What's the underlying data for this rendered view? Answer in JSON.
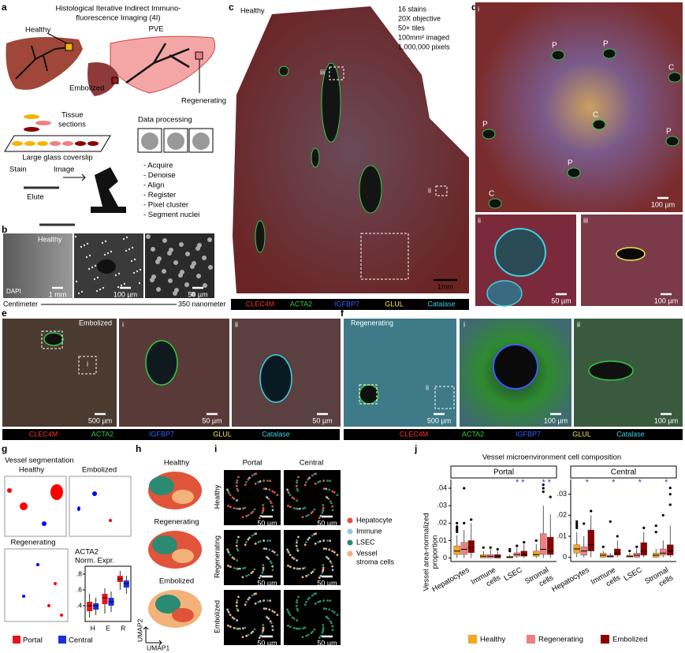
{
  "a": {
    "letter": "a",
    "title": [
      "Histological Iterative Indirect Immuno-",
      "fluorescence Imaging (4I)"
    ],
    "healthy": "Healthy",
    "pve": "PVE",
    "embolized": "Embolized",
    "regenerating": "Regenerating",
    "tissue_sections": [
      "Tissue",
      "sections"
    ],
    "coverslip": "Large glass coverslip",
    "data_processing": "Data processing",
    "stain": "Stain",
    "image": "Image",
    "elute": "Elute",
    "steps": [
      "- Acquire",
      "- Denoise",
      "- Align",
      "- Register",
      "- Pixel cluster",
      "- Segment nuclei"
    ]
  },
  "b": {
    "letter": "b",
    "healthy": "Healthy",
    "dapi": "DAPI",
    "scales": [
      "1 mm",
      "100 µm",
      "50 µm"
    ],
    "left": "Centimeter",
    "right": "350 nanometer"
  },
  "c": {
    "letter": "c",
    "condition": "Healthy",
    "stats": [
      "16 stains",
      "20X objective",
      "50+ tiles",
      "100mm² imaged",
      "1,000,000 pixels"
    ],
    "insets": [
      "iii",
      "ii"
    ],
    "scale": "1mm"
  },
  "stains": [
    {
      "name": "CLEC4M",
      "color": "#ff2a2a"
    },
    {
      "name": "ACTA2",
      "color": "#2ecc40"
    },
    {
      "name": "IGFBP7",
      "color": "#3b5bff"
    },
    {
      "name": "GLUL",
      "color": "#f5e642"
    },
    {
      "name": "Catalase",
      "color": "#3fd0e0"
    }
  ],
  "d": {
    "letter": "d",
    "panels": [
      "i",
      "ii",
      "iii"
    ],
    "markers": [
      "P",
      "P",
      "C",
      "P",
      "C",
      "P",
      "P",
      "C"
    ],
    "scales": [
      "100 µm",
      "50 µm",
      "100 µm"
    ]
  },
  "e": {
    "letter": "e",
    "condition": "Embolized",
    "panels": [
      "i",
      "ii"
    ],
    "scales": [
      "500 µm",
      "50 µm",
      "50 µm"
    ]
  },
  "f": {
    "letter": "f",
    "condition": "Regenerating",
    "panels": [
      "i",
      "ii"
    ],
    "scales": [
      "500 µm",
      "100 µm",
      "100 µm"
    ]
  },
  "g": {
    "letter": "g",
    "title": "Vessel segmentation",
    "conditions": [
      "Healthy",
      "Embolized",
      "Regenerating"
    ],
    "chart": {
      "type": "box",
      "title": "ACTA2",
      "subtitle": "Norm. Expr.",
      "categories": [
        "H",
        "E",
        "R"
      ],
      "ylim": [
        0.2,
        0.9
      ],
      "yticks": [
        {
          "value": 0.4,
          "label": ".4"
        },
        {
          "value": 0.6,
          "label": ".6"
        },
        {
          "value": 0.8,
          "label": ".8"
        }
      ],
      "series": [
        {
          "name": "Portal",
          "color": "#e8141b",
          "values": [
            [
              0.25,
              0.33,
              0.4,
              0.45,
              0.55
            ],
            [
              0.3,
              0.42,
              0.5,
              0.55,
              0.62
            ],
            [
              0.6,
              0.7,
              0.74,
              0.78,
              0.84
            ]
          ]
        },
        {
          "name": "Central",
          "color": "#1a2fe0",
          "values": [
            [
              0.28,
              0.35,
              0.4,
              0.43,
              0.5
            ],
            [
              0.32,
              0.4,
              0.45,
              0.5,
              0.58
            ],
            [
              0.55,
              0.63,
              0.68,
              0.72,
              0.78
            ]
          ]
        }
      ]
    }
  },
  "h": {
    "letter": "h",
    "conditions": [
      "Healthy",
      "Regenerating",
      "Embolized"
    ],
    "xlabel": "UMAP1",
    "ylabel": "UMAP2"
  },
  "i": {
    "letter": "i",
    "columns": [
      "Portal",
      "Central"
    ],
    "rows": [
      "Healthy",
      "Regenerating",
      "Embolized"
    ],
    "scale": "50 µm",
    "legend": [
      {
        "lines": [
          "Hepatocyte"
        ],
        "color": "#e0553a"
      },
      {
        "lines": [
          "Immune"
        ],
        "color": "#8ecae6"
      },
      {
        "lines": [
          "LSEC"
        ],
        "color": "#2a8a72"
      },
      {
        "lines": [
          "Vessel",
          "stroma cells"
        ],
        "color": "#f2b27a"
      }
    ]
  },
  "j": {
    "letter": "j",
    "type": "box",
    "title": "Vessel microenvironment cell composition",
    "ylabel": [
      "Vessel area-normalized",
      "proportion"
    ],
    "categories": [
      [
        "Hepatocytes"
      ],
      [
        "Immune",
        "cells"
      ],
      [
        "LSEC"
      ],
      [
        "Stromal",
        "cells"
      ]
    ],
    "series": [
      {
        "name": "Healthy",
        "color": "#f5a623"
      },
      {
        "name": "Regenerating",
        "color": "#f08080"
      },
      {
        "name": "Embolized",
        "color": "#8b0000"
      }
    ],
    "facets": [
      {
        "name": "Portal",
        "ylim": [
          -0.002,
          0.045
        ],
        "yticks": [
          0,
          {
            "value": 0.01,
            "label": ".01"
          },
          {
            "value": 0.02,
            "label": ".02"
          },
          {
            "value": 0.03,
            "label": ".03"
          },
          {
            "value": 0.04,
            "label": ".04"
          }
        ],
        "significance": [
          null,
          null,
          "* *",
          "* *"
        ],
        "boxes": [
          [
            [
              0,
              0.002,
              0.004,
              0.007,
              0.013
            ],
            [
              0,
              0,
              0.001,
              0.002,
              0.004
            ],
            [
              0,
              0,
              0.0005,
              0.001,
              0.002
            ],
            [
              0,
              0.001,
              0.002,
              0.004,
              0.008
            ]
          ],
          [
            [
              0,
              0.002,
              0.005,
              0.009,
              0.016
            ],
            [
              0,
              0,
              0.001,
              0.002,
              0.005
            ],
            [
              0,
              0.001,
              0.002,
              0.003,
              0.006
            ],
            [
              0,
              0.002,
              0.005,
              0.014,
              0.03
            ]
          ],
          [
            [
              0,
              0.003,
              0.006,
              0.01,
              0.02
            ],
            [
              0,
              0,
              0.001,
              0.002,
              0.004
            ],
            [
              0,
              0.001,
              0.002,
              0.004,
              0.008
            ],
            [
              0,
              0.002,
              0.004,
              0.012,
              0.025
            ]
          ]
        ],
        "outliers": [
          [
            [
              0.015,
              0.016,
              0.017,
              0.018,
              0.02
            ],
            [
              0.006
            ],
            [
              0.004,
              0.005
            ],
            [
              0.01
            ]
          ],
          [
            [
              0.02,
              0.04
            ],
            [
              0.006
            ],
            [
              0.007
            ],
            [
              0.038,
              0.04,
              0.042
            ]
          ],
          [
            [
              0.022
            ],
            [
              0.005
            ],
            [
              0.009
            ],
            [
              0.035
            ]
          ]
        ]
      },
      {
        "name": "Central",
        "ylim": [
          -0.002,
          0.037
        ],
        "yticks": [
          0,
          {
            "value": 0.01,
            "label": ".01"
          },
          {
            "value": 0.02,
            "label": ".02"
          },
          {
            "value": 0.03,
            "label": ".03"
          }
        ],
        "significance": [
          "*",
          "*",
          "*",
          "*"
        ],
        "boxes": [
          [
            [
              0,
              0.002,
              0.004,
              0.006,
              0.012
            ],
            [
              0,
              0,
              0.001,
              0.002,
              0.003
            ],
            [
              0,
              0,
              0.0005,
              0.001,
              0.002
            ],
            [
              0,
              0,
              0.001,
              0.002,
              0.004
            ]
          ],
          [
            [
              0,
              0.001,
              0.003,
              0.005,
              0.01
            ],
            [
              0,
              0,
              0.0005,
              0.001,
              0.002
            ],
            [
              0,
              0,
              0.001,
              0.002,
              0.004
            ],
            [
              0,
              0.001,
              0.002,
              0.004,
              0.008
            ]
          ],
          [
            [
              0,
              0.003,
              0.006,
              0.013,
              0.02
            ],
            [
              0,
              0.001,
              0.002,
              0.004,
              0.008
            ],
            [
              0,
              0.001,
              0.003,
              0.007,
              0.012
            ],
            [
              0,
              0.001,
              0.003,
              0.006,
              0.015
            ]
          ]
        ],
        "outliers": [
          [
            [
              0.014,
              0.015,
              0.016,
              0.017
            ],
            [
              0.005
            ],
            [
              0.003
            ],
            [
              0.012,
              0.015
            ]
          ],
          [
            [
              0.016
            ],
            [
              0.017
            ],
            [
              0.005
            ],
            [
              0.02
            ]
          ],
          [
            [
              0.022
            ],
            [
              0.01
            ],
            [
              0.014
            ],
            [
              0.025,
              0.03,
              0.033
            ]
          ]
        ]
      }
    ]
  }
}
